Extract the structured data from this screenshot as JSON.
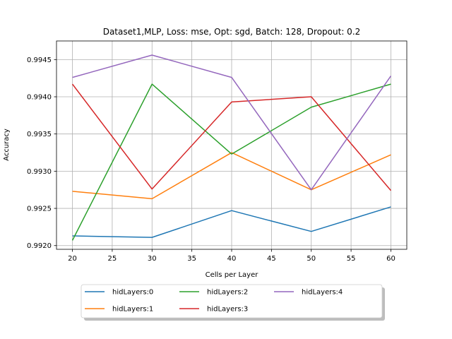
{
  "chart_data": {
    "type": "line",
    "title": "Dataset1,MLP, Loss: mse, Opt: sgd, Batch: 128, Dropout: 0.2",
    "xlabel": "Cells per Layer",
    "ylabel": "Accuracy",
    "x": [
      20,
      30,
      40,
      50,
      60
    ],
    "xlim": [
      18,
      62
    ],
    "ylim": [
      0.99195,
      0.99475
    ],
    "xticks": [
      20,
      25,
      30,
      35,
      40,
      45,
      50,
      55,
      60
    ],
    "yticks": [
      0.992,
      0.9925,
      0.993,
      0.9935,
      0.994,
      0.9945
    ],
    "yticklabels": [
      "0.9920",
      "0.9925",
      "0.9930",
      "0.9935",
      "0.9940",
      "0.9945"
    ],
    "grid": true,
    "legend_position": "bottom, outside plot area",
    "series": [
      {
        "name": "hidLayers:0",
        "color": "#1f77b4",
        "values": [
          0.99213,
          0.99211,
          0.99247,
          0.99219,
          0.99252
        ]
      },
      {
        "name": "hidLayers:1",
        "color": "#ff7f0e",
        "values": [
          0.99273,
          0.99263,
          0.99325,
          0.99275,
          0.99322
        ]
      },
      {
        "name": "hidLayers:2",
        "color": "#2ca02c",
        "values": [
          0.99207,
          0.99417,
          0.99323,
          0.99386,
          0.99417
        ]
      },
      {
        "name": "hidLayers:3",
        "color": "#d62728",
        "values": [
          0.99417,
          0.99276,
          0.99393,
          0.994,
          0.99274
        ]
      },
      {
        "name": "hidLayers:4",
        "color": "#9467bd",
        "values": [
          0.99426,
          0.99456,
          0.99426,
          0.99275,
          0.99428
        ]
      }
    ]
  }
}
